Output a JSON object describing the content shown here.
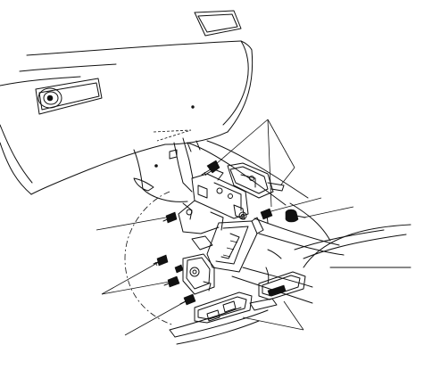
{
  "figure": {
    "subject": "exploded-assembly",
    "line_color": "#111111",
    "background": "#ffffff",
    "callout_count": 5
  }
}
